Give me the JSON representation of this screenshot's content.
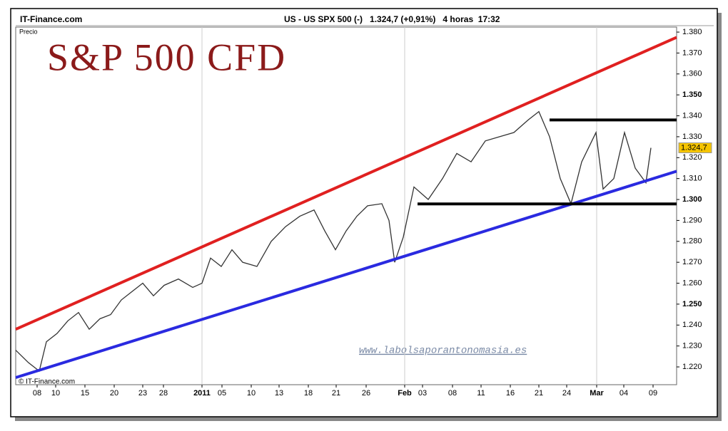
{
  "chart_data": {
    "type": "line",
    "source": "IT-Finance.com",
    "header": "US - US SPX 500 (-)   1.324,7 (+0,91%)   4 horas  17:32",
    "ylabel": "Precio",
    "title": "S&P 500 CFD",
    "watermark": "www.labolsaporantonomasia.es",
    "credit": "© IT-Finance.com",
    "xlim": [
      0,
      926
    ],
    "ylim": [
      1211.5,
      1382.4
    ],
    "xticks": [
      {
        "value": 30,
        "label": "08"
      },
      {
        "value": 56,
        "label": "10"
      },
      {
        "value": 97,
        "label": "15"
      },
      {
        "value": 138,
        "label": "20"
      },
      {
        "value": 178,
        "label": "23"
      },
      {
        "value": 207,
        "label": "28"
      },
      {
        "value": 261,
        "label": "2011"
      },
      {
        "value": 289,
        "label": "05"
      },
      {
        "value": 330,
        "label": "10"
      },
      {
        "value": 369,
        "label": "13"
      },
      {
        "value": 410,
        "label": "18"
      },
      {
        "value": 449,
        "label": "21"
      },
      {
        "value": 491,
        "label": "26"
      },
      {
        "value": 545,
        "label": "Feb"
      },
      {
        "value": 570,
        "label": "03"
      },
      {
        "value": 612,
        "label": "08"
      },
      {
        "value": 652,
        "label": "11"
      },
      {
        "value": 693,
        "label": "16"
      },
      {
        "value": 733,
        "label": "21"
      },
      {
        "value": 772,
        "label": "24"
      },
      {
        "value": 814,
        "label": "Mar"
      },
      {
        "value": 852,
        "label": "04"
      },
      {
        "value": 893,
        "label": "09"
      }
    ],
    "yticks": [
      {
        "value": 1220,
        "label": "1.220"
      },
      {
        "value": 1230,
        "label": "1.230"
      },
      {
        "value": 1240,
        "label": "1.240"
      },
      {
        "value": 1250,
        "label": "1.250"
      },
      {
        "value": 1260,
        "label": "1.260"
      },
      {
        "value": 1270,
        "label": "1.270"
      },
      {
        "value": 1280,
        "label": "1.280"
      },
      {
        "value": 1290,
        "label": "1.290"
      },
      {
        "value": 1300,
        "label": "1.300"
      },
      {
        "value": 1310,
        "label": "1.310"
      },
      {
        "value": 1320,
        "label": "1.320"
      },
      {
        "value": 1330,
        "label": "1.330"
      },
      {
        "value": 1340,
        "label": "1.340"
      },
      {
        "value": 1350,
        "label": "1.350"
      },
      {
        "value": 1360,
        "label": "1.360"
      },
      {
        "value": 1370,
        "label": "1.370"
      },
      {
        "value": 1380,
        "label": "1.380"
      }
    ],
    "series": [
      {
        "color": "#333333",
        "x": [
          0,
          18,
          33,
          43,
          58,
          73,
          88,
          103,
          118,
          133,
          148,
          163,
          178,
          193,
          208,
          228,
          248,
          261,
          273,
          288,
          303,
          318,
          338,
          358,
          378,
          398,
          418,
          433,
          448,
          463,
          478,
          493,
          513,
          523,
          531,
          543,
          558,
          578,
          598,
          618,
          638,
          658,
          678,
          698,
          718,
          733,
          748,
          763,
          778,
          793,
          813,
          823,
          838,
          853,
          868,
          883,
          890
        ],
        "values": [
          1228,
          1222,
          1218,
          1232,
          1236,
          1242,
          1246,
          1238,
          1243,
          1245,
          1252,
          1256,
          1260,
          1254,
          1259,
          1262,
          1258,
          1260,
          1272,
          1268,
          1276,
          1270,
          1268,
          1280,
          1287,
          1292,
          1295,
          1285,
          1276,
          1285,
          1292,
          1297,
          1298,
          1290,
          1270,
          1282,
          1306,
          1300,
          1310,
          1322,
          1318,
          1328,
          1330,
          1332,
          1338,
          1342,
          1330,
          1310,
          1298,
          1318,
          1332,
          1305,
          1310,
          1332,
          1315,
          1308,
          1324.7
        ]
      }
    ],
    "last": {
      "value": 1324.7,
      "label": "1.324,7"
    },
    "trendlines": [
      {
        "color": "#e02020",
        "x": [
          0,
          926
        ],
        "values": [
          1238.0,
          1377.5
        ]
      },
      {
        "color": "#2a2ae0",
        "x": [
          0,
          926
        ],
        "values": [
          1214.9,
          1313.5
        ]
      },
      {
        "color": "#000000",
        "x": [
          748,
          926
        ],
        "values": [
          1338.0,
          1338.0
        ]
      },
      {
        "color": "#000000",
        "x": [
          563,
          926
        ],
        "values": [
          1297.9,
          1297.9
        ]
      }
    ]
  }
}
